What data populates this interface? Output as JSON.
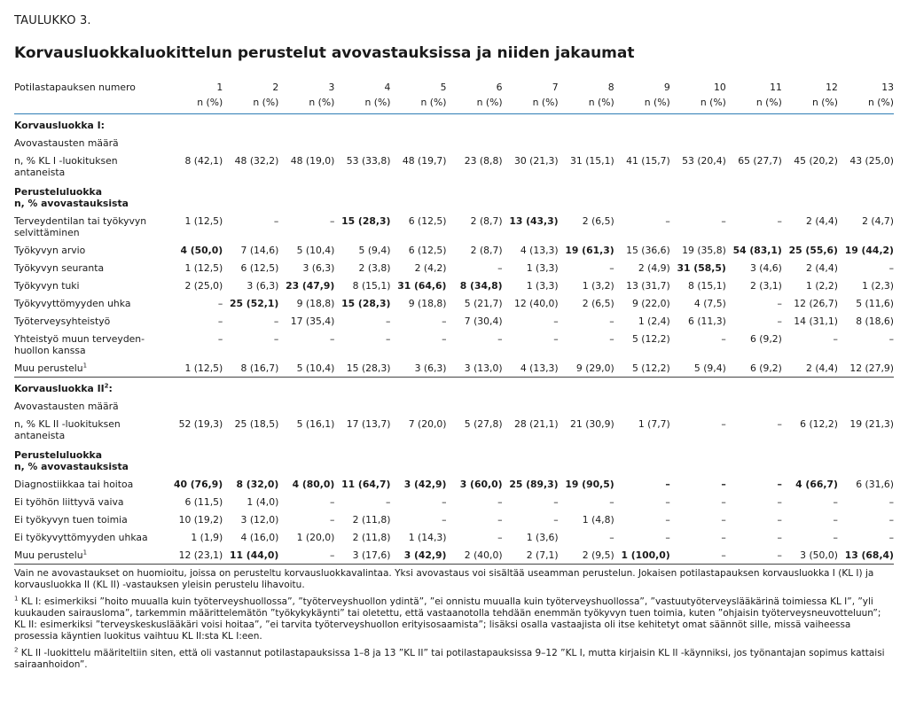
{
  "kicker": "TAULUKKO 3.",
  "title": "Korvausluokkaluokittelun perustelut avovastauksissa ja niiden jakaumat",
  "header": {
    "label": "Potilastapauksen numero",
    "unit": "n (%)",
    "cases": [
      "1",
      "2",
      "3",
      "4",
      "5",
      "6",
      "7",
      "8",
      "9",
      "10",
      "11",
      "12",
      "13"
    ]
  },
  "kl1": {
    "heading": "Korvausluokka I:",
    "count_label": "Avovastausten määrä",
    "n_label": "n, % KL I -luokituksen antaneista",
    "n_values": [
      "8 (42,1)",
      "48 (32,2)",
      "48 (19,0)",
      "53 (33,8)",
      "48 (19,7)",
      "23 (8,8)",
      "30 (21,3)",
      "31 (15,1)",
      "41 (15,7)",
      "53 (20,4)",
      "65 (27,7)",
      "45 (20,2)",
      "43 (25,0)"
    ],
    "sub_heading_1": "Perusteluluokka",
    "sub_heading_2": "n, % avovastauksista",
    "rows": [
      {
        "label": "Terveydentilan tai työkyvyn selvittäminen",
        "values": [
          "1 (12,5)",
          "–",
          "–",
          "15 (28,3)",
          "6 (12,5)",
          "2 (8,7)",
          "13 (43,3)",
          "2 (6,5)",
          "–",
          "–",
          "–",
          "2 (4,4)",
          "2 (4,7)"
        ],
        "bold": [
          3,
          6
        ]
      },
      {
        "label": "Työkyvyn arvio",
        "values": [
          "4 (50,0)",
          "7 (14,6)",
          "5 (10,4)",
          "5 (9,4)",
          "6 (12,5)",
          "2 (8,7)",
          "4 (13,3)",
          "19 (61,3)",
          "15 (36,6)",
          "19 (35,8)",
          "54 (83,1)",
          "25 (55,6)",
          "19 (44,2)"
        ],
        "bold": [
          0,
          7,
          10,
          11,
          12
        ]
      },
      {
        "label": "Työkyvyn seuranta",
        "values": [
          "1 (12,5)",
          "6 (12,5)",
          "3 (6,3)",
          "2 (3,8)",
          "2 (4,2)",
          "–",
          "1 (3,3)",
          "–",
          "2 (4,9)",
          "31 (58,5)",
          "3 (4,6)",
          "2 (4,4)",
          "–"
        ],
        "bold": [
          9
        ]
      },
      {
        "label": "Työkyvyn tuki",
        "values": [
          "2 (25,0)",
          "3 (6,3)",
          "23 (47,9)",
          "8 (15,1)",
          "31 (64,6)",
          "8 (34,8)",
          "1 (3,3)",
          "1 (3,2)",
          "13 (31,7)",
          "8 (15,1)",
          "2 (3,1)",
          "1 (2,2)",
          "1 (2,3)"
        ],
        "bold": [
          2,
          4,
          5
        ]
      },
      {
        "label": "Työkyvyttömyyden uhka",
        "values": [
          "–",
          "25 (52,1)",
          "9 (18,8)",
          "15 (28,3)",
          "9 (18,8)",
          "5 (21,7)",
          "12 (40,0)",
          "2 (6,5)",
          "9 (22,0)",
          "4 (7,5)",
          "–",
          "12 (26,7)",
          "5 (11,6)"
        ],
        "bold": [
          1,
          3
        ]
      },
      {
        "label": "Työterveysyhteistyö",
        "values": [
          "–",
          "–",
          "17 (35,4)",
          "–",
          "–",
          "7 (30,4)",
          "–",
          "–",
          "1 (2,4)",
          "6 (11,3)",
          "–",
          "14 (31,1)",
          "8 (18,6)"
        ],
        "bold": []
      },
      {
        "label": "Yhteistyö muun terveyden­huollon kanssa",
        "values": [
          "–",
          "–",
          "–",
          "–",
          "–",
          "–",
          "–",
          "–",
          "5 (12,2)",
          "–",
          "6 (9,2)",
          "–",
          "–"
        ],
        "bold": []
      },
      {
        "label": "Muu perustelu",
        "sup": "1",
        "values": [
          "1 (12,5)",
          "8 (16,7)",
          "5 (10,4)",
          "15 (28,3)",
          "3 (6,3)",
          "3 (13,0)",
          "4 (13,3)",
          "9 (29,0)",
          "5 (12,2)",
          "5 (9,4)",
          "6 (9,2)",
          "2 (4,4)",
          "12 (27,9)"
        ],
        "bold": []
      }
    ]
  },
  "kl2": {
    "heading": "Korvausluokka II",
    "heading_sup": "2",
    "heading_suffix": ":",
    "count_label": "Avovastausten määrä",
    "n_label": "n, % KL II -luokituksen antaneista",
    "n_values": [
      "52 (19,3)",
      "25 (18,5)",
      "5 (16,1)",
      "17 (13,7)",
      "7 (20,0)",
      "5 (27,8)",
      "28 (21,1)",
      "21 (30,9)",
      "1 (7,7)",
      "–",
      "–",
      "6 (12,2)",
      "19 (21,3)"
    ],
    "sub_heading_1": "Perusteluluokka",
    "sub_heading_2": "n, % avovastauksista",
    "rows": [
      {
        "label": "Diagnostiikkaa tai hoitoa",
        "values": [
          "40 (76,9)",
          "8 (32,0)",
          "4 (80,0)",
          "11 (64,7)",
          "3 (42,9)",
          "3 (60,0)",
          "25 (89,3)",
          "19 (90,5)",
          "–",
          "–",
          "–",
          "4 (66,7)",
          "6 (31,6)"
        ],
        "bold": [
          0,
          1,
          2,
          3,
          4,
          5,
          6,
          7,
          8,
          9,
          10,
          11
        ]
      },
      {
        "label": "Ei työhön liittyvä vaiva",
        "values": [
          "6 (11,5)",
          "1 (4,0)",
          "–",
          "–",
          "–",
          "–",
          "–",
          "–",
          "–",
          "–",
          "–",
          "–",
          "–"
        ],
        "bold": []
      },
      {
        "label": "Ei työkyvyn tuen toimia",
        "values": [
          "10 (19,2)",
          "3 (12,0)",
          "–",
          "2 (11,8)",
          "–",
          "–",
          "–",
          "1 (4,8)",
          "–",
          "–",
          "–",
          "–",
          "–"
        ],
        "bold": []
      },
      {
        "label": "Ei työkyvyttömyyden uhkaa",
        "values": [
          "1 (1,9)",
          "4 (16,0)",
          "1 (20,0)",
          "2 (11,8)",
          "1 (14,3)",
          "–",
          "1 (3,6)",
          "–",
          "–",
          "–",
          "–",
          "–",
          "–"
        ],
        "bold": []
      },
      {
        "label": "Muu perustelu",
        "sup": "1",
        "values": [
          "12 (23,1)",
          "11 (44,0)",
          "–",
          "3 (17,6)",
          "3 (42,9)",
          "2 (40,0)",
          "2 (7,1)",
          "2 (9,5)",
          "1 (100,0)",
          "–",
          "–",
          "3 (50,0)",
          "13 (68,4)"
        ],
        "bold": [
          1,
          4,
          8,
          12
        ]
      }
    ]
  },
  "notes": {
    "main": "Vain ne avovastaukset on huomioitu, joissa on perusteltu korvausluokkavalintaa. Yksi avovastaus voi sisältää useamman perustelun. Jokaisen potilastapauksen korvausluokka I (KL I) ja korvausluokka II (KL II) -vastauksen yleisin perustelu lihavoitu.",
    "fn1_mark": "1",
    "fn1": " KL I: esimerkiksi ”hoito muualla kuin työterveyshuollossa”, ”työterveyshuollon ydintä”, ”ei onnistu muualla kuin työterveyshuollossa”, ”vastuutyöterveyslääkärinä toimiessa KL I”, ”yli kuukauden sairausloma”, tarkemmin määrittelemätön ”työkykykäynti” tai oletettu, että vastaanotolla tehdään enemmän työkyvyn tuen toimia, kuten ”ohjaisin työterveysneuvotteluun”; KL II: esimerkiksi ”terveyskeskuslääkäri voisi hoitaa”, ”ei tarvita työterveyshuollon erityisosaamista”; lisäksi osalla vastaajista oli itse kehitetyt omat säännöt sille, missä vaiheessa prosessia käyntien luokitus vaihtuu KL II:sta KL I:een.",
    "fn2_mark": "2",
    "fn2": " KL II -luokittelu määriteltiin siten, että oli vastannut potilastapauksissa 1–8 ja 13 ”KL II” tai potilastapauksissa 9–12 ”KL I, mutta kirjaisin KL II -käynniksi, jos työnantajan sopimus kattaisi sairaanhoidon”."
  }
}
